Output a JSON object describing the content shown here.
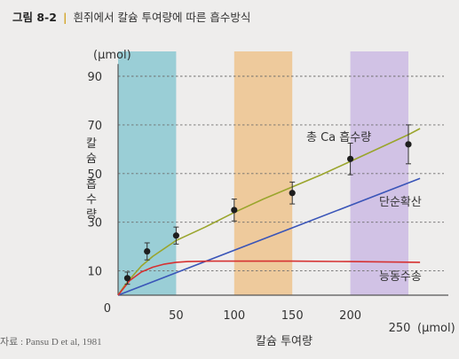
{
  "header": {
    "figure_number": "그림 8-2",
    "title": "흰쥐에서 칼슘 투여량에 따른 흡수방식"
  },
  "source": "자료 : Pansu D et al, 1981",
  "chart_data": {
    "type": "line",
    "title": "흰쥐에서 칼슘 투여량에 따른 흡수방식",
    "xlabel": "칼슘 투여량",
    "ylabel": "칼슘 흡수량",
    "x_unit": "(μmol)",
    "y_unit": "(μmol)",
    "xlim": [
      0,
      265
    ],
    "ylim": [
      0,
      95
    ],
    "x_ticks": [
      0,
      50,
      100,
      150,
      200,
      250
    ],
    "y_ticks": [
      10,
      30,
      50,
      70,
      90
    ],
    "grid": "horizontal dashed",
    "shaded_bands": [
      {
        "x": [
          0,
          50
        ],
        "color": "#7ec3cf"
      },
      {
        "x": [
          100,
          150
        ],
        "color": "#eebd82"
      },
      {
        "x": [
          200,
          250
        ],
        "color": "#c7b3e3"
      }
    ],
    "series": [
      {
        "name": "총 Ca 흡수량",
        "color": "#9aa52c",
        "x": [
          0,
          5,
          10,
          20,
          30,
          50,
          75,
          100,
          125,
          150,
          175,
          200,
          225,
          250,
          260
        ],
        "y": [
          0,
          3.5,
          6.5,
          12,
          16,
          22.5,
          28,
          34,
          39.5,
          44.5,
          49.5,
          55,
          60.5,
          66,
          68.5
        ]
      },
      {
        "name": "단순확산",
        "color": "#3a55b8",
        "x": [
          0,
          260
        ],
        "y": [
          0,
          48
        ]
      },
      {
        "name": "능동수송",
        "color": "#d63131",
        "x": [
          0,
          10,
          20,
          30,
          40,
          50,
          60,
          80,
          100,
          150,
          200,
          260
        ],
        "y": [
          0,
          6,
          9.5,
          11.5,
          12.8,
          13.5,
          13.8,
          14,
          14,
          14,
          13.8,
          13.5
        ]
      }
    ],
    "measured_points": {
      "x": [
        8,
        25,
        50,
        100,
        150,
        200,
        250
      ],
      "y": [
        7,
        18,
        24.5,
        35,
        42,
        56,
        62
      ],
      "error": [
        2.5,
        3.5,
        3.5,
        4.5,
        4.5,
        6.5,
        8
      ]
    }
  }
}
